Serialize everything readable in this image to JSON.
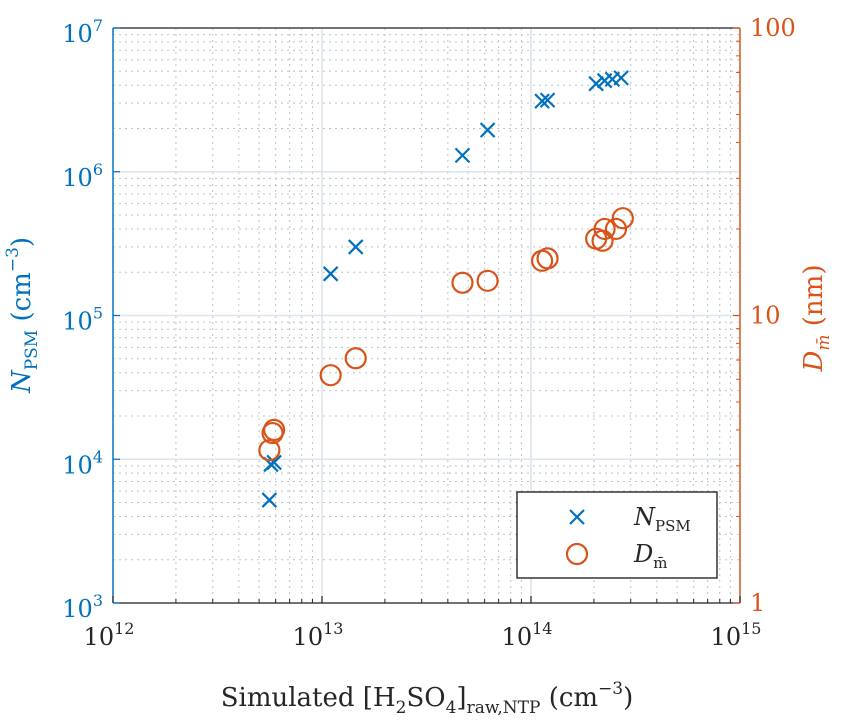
{
  "chart_data": {
    "type": "scatter",
    "colors": {
      "left": "#0072BD",
      "right": "#D95319",
      "grid": "#b8c4d0"
    },
    "x_axis": {
      "scale": "log",
      "range": [
        1000000000000.0,
        1000000000000000.0
      ],
      "label_main": "Simulated [H",
      "label_sub1": "2",
      "label_mid": "SO",
      "label_sub2": "4",
      "label_bracket": "]",
      "label_sub3": "raw,NTP",
      "label_unit": " (cm",
      "label_sup": "−3",
      "label_end": ")",
      "ticks": [
        {
          "value": 1000000000000.0,
          "base": "10",
          "exp": "12"
        },
        {
          "value": 10000000000000.0,
          "base": "10",
          "exp": "13"
        },
        {
          "value": 100000000000000.0,
          "base": "10",
          "exp": "14"
        },
        {
          "value": 1000000000000000.0,
          "base": "10",
          "exp": "15"
        }
      ]
    },
    "y_left": {
      "scale": "log",
      "range": [
        1000.0,
        10000000.0
      ],
      "label_main": "N",
      "label_sub": "PSM",
      "label_unit": " (cm",
      "label_sup": "−3",
      "label_end": ")",
      "ticks": [
        {
          "value": 1000.0,
          "base": "10",
          "exp": "3"
        },
        {
          "value": 10000.0,
          "base": "10",
          "exp": "4"
        },
        {
          "value": 100000.0,
          "base": "10",
          "exp": "5"
        },
        {
          "value": 1000000.0,
          "base": "10",
          "exp": "6"
        },
        {
          "value": 10000000.0,
          "base": "10",
          "exp": "7"
        }
      ]
    },
    "y_right": {
      "scale": "log",
      "range": [
        1,
        100
      ],
      "label_main": "D",
      "label_sub": "m̄",
      "label_unit": " (nm)",
      "ticks": [
        {
          "value": 1,
          "label": "1"
        },
        {
          "value": 10,
          "label": "10"
        },
        {
          "value": 100,
          "label": "100"
        }
      ]
    },
    "series": [
      {
        "name_main": "N",
        "name_sub": "PSM",
        "axis": "left",
        "marker": "x",
        "points": [
          {
            "x": 5600000000000.0,
            "y": 5200.0
          },
          {
            "x": 5700000000000.0,
            "y": 9200.0
          },
          {
            "x": 5900000000000.0,
            "y": 9500.0
          },
          {
            "x": 11000000000000.0,
            "y": 195000.0
          },
          {
            "x": 14500000000000.0,
            "y": 300000.0
          },
          {
            "x": 47000000000000.0,
            "y": 1300000.0
          },
          {
            "x": 62000000000000.0,
            "y": 1950000.0
          },
          {
            "x": 113000000000000.0,
            "y": 3100000.0
          },
          {
            "x": 120000000000000.0,
            "y": 3150000.0
          },
          {
            "x": 205000000000000.0,
            "y": 4100000.0
          },
          {
            "x": 225000000000000.0,
            "y": 4300000.0
          },
          {
            "x": 245000000000000.0,
            "y": 4400000.0
          },
          {
            "x": 270000000000000.0,
            "y": 4500000.0
          }
        ]
      },
      {
        "name_main": "D",
        "name_sub": "m̄",
        "axis": "right",
        "marker": "o",
        "points": [
          {
            "x": 5600000000000.0,
            "y": 3.4
          },
          {
            "x": 5800000000000.0,
            "y": 3.9
          },
          {
            "x": 5900000000000.0,
            "y": 4.0
          },
          {
            "x": 11000000000000.0,
            "y": 6.2
          },
          {
            "x": 14500000000000.0,
            "y": 7.1
          },
          {
            "x": 47000000000000.0,
            "y": 13.0
          },
          {
            "x": 62000000000000.0,
            "y": 13.2
          },
          {
            "x": 113000000000000.0,
            "y": 15.5
          },
          {
            "x": 120000000000000.0,
            "y": 15.8
          },
          {
            "x": 205000000000000.0,
            "y": 18.5
          },
          {
            "x": 220000000000000.0,
            "y": 18.2
          },
          {
            "x": 225000000000000.0,
            "y": 20.0
          },
          {
            "x": 255000000000000.0,
            "y": 20.0
          },
          {
            "x": 275000000000000.0,
            "y": 21.8
          }
        ]
      }
    ],
    "legend_position": "bottom-right",
    "grid": true,
    "minor_grid": true
  }
}
